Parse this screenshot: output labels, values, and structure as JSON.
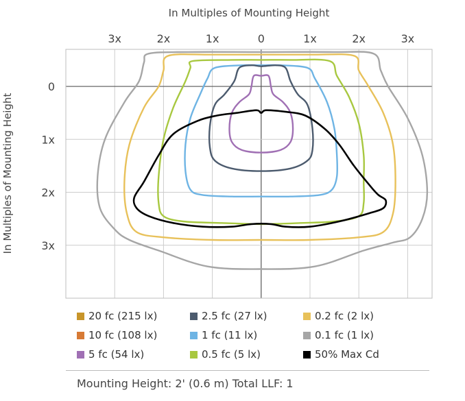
{
  "colors": {
    "20fc": "#c8952a",
    "2_5fc": "#4c5b6e",
    "0_2fc": "#e8c15a",
    "10fc": "#d77a35",
    "1fc": "#6eb4e4",
    "0_1fc": "#a6a6a6",
    "5fc": "#a070b4",
    "0_5fc": "#a8c840",
    "50max": "#000000"
  },
  "footer": "Mounting Height: 2' (0.6 m)  Total LLF: 1",
  "chart_data": {
    "type": "line",
    "title": "",
    "xlabel": "In Multiples of Mounting Height",
    "ylabel": "In Multiples of Mounting Height",
    "x_ticks": [
      "3x",
      "2x",
      "1x",
      "0",
      "1x",
      "2x",
      "3x"
    ],
    "y_ticks": [
      "0",
      "1x",
      "2x",
      "3x"
    ],
    "xlim": [
      -4,
      3.5
    ],
    "ylim": [
      -0.7,
      4
    ],
    "grid": true,
    "legend_position": "bottom",
    "legend": [
      {
        "key": "20fc",
        "label": "20 fc (215 lx)"
      },
      {
        "key": "2_5fc",
        "label": "2.5 fc (27 lx)"
      },
      {
        "key": "0_2fc",
        "label": "0.2 fc (2 lx)"
      },
      {
        "key": "10fc",
        "label": "10 fc (108 lx)"
      },
      {
        "key": "1fc",
        "label": "1 fc (11 lx)"
      },
      {
        "key": "0_1fc",
        "label": "0.1 fc (1 lx)"
      },
      {
        "key": "5fc",
        "label": "5 fc (54 lx)"
      },
      {
        "key": "0_5fc",
        "label": "0.5 fc (5 lx)"
      },
      {
        "key": "50max",
        "label": "50% Max Cd"
      }
    ],
    "series": [
      {
        "key": "0_1fc",
        "points": [
          [
            -2.3,
            -0.62
          ],
          [
            -1.5,
            -0.65
          ],
          [
            0,
            -0.65
          ],
          [
            1.5,
            -0.65
          ],
          [
            2.3,
            -0.62
          ],
          [
            2.45,
            -0.3
          ],
          [
            2.6,
            0
          ],
          [
            3.0,
            0.6
          ],
          [
            3.3,
            1.3
          ],
          [
            3.4,
            2.0
          ],
          [
            3.3,
            2.5
          ],
          [
            3.05,
            2.85
          ],
          [
            2.7,
            2.95
          ],
          [
            2.1,
            3.1
          ],
          [
            1.1,
            3.4
          ],
          [
            0,
            3.45
          ],
          [
            -1.1,
            3.4
          ],
          [
            -2.1,
            3.1
          ],
          [
            -2.7,
            2.9
          ],
          [
            -3.0,
            2.7
          ],
          [
            -3.3,
            2.3
          ],
          [
            -3.35,
            1.7
          ],
          [
            -3.2,
            1.0
          ],
          [
            -2.8,
            0.3
          ],
          [
            -2.5,
            -0.1
          ],
          [
            -2.4,
            -0.45
          ]
        ]
      },
      {
        "key": "0_2fc",
        "points": [
          [
            -1.9,
            -0.58
          ],
          [
            -1.0,
            -0.6
          ],
          [
            0,
            -0.6
          ],
          [
            1.0,
            -0.6
          ],
          [
            1.9,
            -0.58
          ],
          [
            2.0,
            -0.3
          ],
          [
            2.2,
            0
          ],
          [
            2.5,
            0.5
          ],
          [
            2.7,
            1.1
          ],
          [
            2.75,
            1.8
          ],
          [
            2.7,
            2.4
          ],
          [
            2.5,
            2.75
          ],
          [
            2.0,
            2.85
          ],
          [
            1.0,
            2.9
          ],
          [
            0,
            2.9
          ],
          [
            -1.0,
            2.9
          ],
          [
            -2.0,
            2.85
          ],
          [
            -2.55,
            2.75
          ],
          [
            -2.75,
            2.4
          ],
          [
            -2.8,
            1.8
          ],
          [
            -2.7,
            1.1
          ],
          [
            -2.4,
            0.4
          ],
          [
            -2.1,
            0
          ],
          [
            -2.0,
            -0.3
          ]
        ]
      },
      {
        "key": "0_5fc",
        "points": [
          [
            -1.4,
            -0.48
          ],
          [
            -0.6,
            -0.5
          ],
          [
            0,
            -0.5
          ],
          [
            0.6,
            -0.5
          ],
          [
            1.4,
            -0.48
          ],
          [
            1.55,
            -0.2
          ],
          [
            1.8,
            0.2
          ],
          [
            2.0,
            0.7
          ],
          [
            2.1,
            1.3
          ],
          [
            2.1,
            1.8
          ],
          [
            2.1,
            2.2
          ],
          [
            2.0,
            2.45
          ],
          [
            1.5,
            2.55
          ],
          [
            0.8,
            2.58
          ],
          [
            0,
            2.6
          ],
          [
            -0.8,
            2.58
          ],
          [
            -1.6,
            2.55
          ],
          [
            -2.0,
            2.45
          ],
          [
            -2.1,
            2.2
          ],
          [
            -2.1,
            1.7
          ],
          [
            -2.0,
            1.0
          ],
          [
            -1.8,
            0.4
          ],
          [
            -1.55,
            -0.1
          ],
          [
            -1.45,
            -0.35
          ]
        ]
      },
      {
        "key": "1fc",
        "points": [
          [
            -0.95,
            -0.35
          ],
          [
            -0.4,
            -0.4
          ],
          [
            0,
            -0.4
          ],
          [
            0.4,
            -0.4
          ],
          [
            0.95,
            -0.35
          ],
          [
            1.1,
            -0.15
          ],
          [
            1.35,
            0.3
          ],
          [
            1.5,
            0.8
          ],
          [
            1.55,
            1.3
          ],
          [
            1.55,
            1.7
          ],
          [
            1.45,
            1.95
          ],
          [
            1.2,
            2.05
          ],
          [
            0.6,
            2.08
          ],
          [
            0,
            2.08
          ],
          [
            -0.6,
            2.08
          ],
          [
            -1.2,
            2.05
          ],
          [
            -1.45,
            1.95
          ],
          [
            -1.55,
            1.6
          ],
          [
            -1.55,
            1.1
          ],
          [
            -1.45,
            0.6
          ],
          [
            -1.25,
            0.15
          ],
          [
            -1.1,
            -0.15
          ]
        ]
      },
      {
        "key": "2_5fc",
        "points": [
          [
            -0.45,
            -0.35
          ],
          [
            -0.2,
            -0.4
          ],
          [
            0,
            -0.38
          ],
          [
            0.3,
            -0.4
          ],
          [
            0.5,
            -0.35
          ],
          [
            0.6,
            -0.1
          ],
          [
            0.75,
            0.15
          ],
          [
            0.95,
            0.35
          ],
          [
            1.05,
            0.8
          ],
          [
            1.05,
            1.2
          ],
          [
            0.95,
            1.4
          ],
          [
            0.6,
            1.55
          ],
          [
            0,
            1.6
          ],
          [
            -0.6,
            1.55
          ],
          [
            -0.95,
            1.4
          ],
          [
            -1.05,
            1.15
          ],
          [
            -1.05,
            0.75
          ],
          [
            -0.95,
            0.35
          ],
          [
            -0.75,
            0.15
          ],
          [
            -0.55,
            -0.1
          ]
        ]
      },
      {
        "key": "5fc",
        "points": [
          [
            -0.15,
            -0.2
          ],
          [
            0,
            -0.2
          ],
          [
            0.15,
            -0.2
          ],
          [
            0.2,
            0
          ],
          [
            0.25,
            0.15
          ],
          [
            0.45,
            0.3
          ],
          [
            0.6,
            0.5
          ],
          [
            0.65,
            0.8
          ],
          [
            0.6,
            1.05
          ],
          [
            0.4,
            1.2
          ],
          [
            0,
            1.25
          ],
          [
            -0.4,
            1.2
          ],
          [
            -0.6,
            1.05
          ],
          [
            -0.65,
            0.8
          ],
          [
            -0.6,
            0.5
          ],
          [
            -0.45,
            0.3
          ],
          [
            -0.25,
            0.15
          ],
          [
            -0.2,
            0
          ]
        ]
      },
      {
        "key": "50max",
        "points": [
          [
            -0.5,
            0.5
          ],
          [
            -0.1,
            0.45
          ],
          [
            0,
            0.5
          ],
          [
            0.1,
            0.45
          ],
          [
            0.5,
            0.48
          ],
          [
            0.9,
            0.55
          ],
          [
            1.3,
            0.8
          ],
          [
            1.6,
            1.1
          ],
          [
            1.9,
            1.5
          ],
          [
            2.25,
            1.9
          ],
          [
            2.4,
            2.05
          ],
          [
            2.55,
            2.15
          ],
          [
            2.5,
            2.3
          ],
          [
            2.2,
            2.4
          ],
          [
            1.6,
            2.55
          ],
          [
            1.0,
            2.65
          ],
          [
            0.5,
            2.65
          ],
          [
            0.2,
            2.6
          ],
          [
            -0.2,
            2.6
          ],
          [
            -0.6,
            2.65
          ],
          [
            -1.2,
            2.65
          ],
          [
            -1.8,
            2.58
          ],
          [
            -2.3,
            2.45
          ],
          [
            -2.55,
            2.3
          ],
          [
            -2.6,
            2.1
          ],
          [
            -2.4,
            1.8
          ],
          [
            -2.1,
            1.3
          ],
          [
            -1.8,
            0.9
          ],
          [
            -1.3,
            0.65
          ],
          [
            -0.9,
            0.55
          ]
        ]
      }
    ]
  }
}
